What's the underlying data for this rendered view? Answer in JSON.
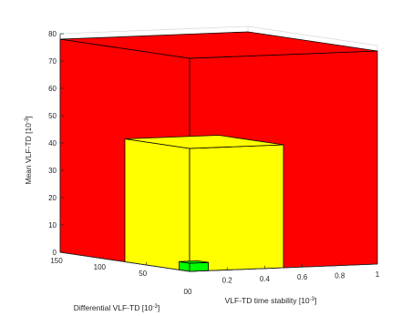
{
  "chart_data": {
    "type": "3d-bar",
    "x_axis": {
      "label": "VLF-TD time stability [10",
      "label_exponent": "-3",
      "label_close": "]",
      "range": [
        0,
        1
      ],
      "ticks": [
        "0",
        "0.2",
        "0.4",
        "0.6",
        "0.8",
        "1"
      ]
    },
    "y_axis": {
      "label": "Differential VLF-TD [10",
      "label_exponent": "-3",
      "label_close": "]",
      "range": [
        0,
        150
      ],
      "ticks": [
        "0",
        "50",
        "100",
        "150"
      ],
      "origin_label": "00"
    },
    "z_axis": {
      "label": "Mean VLF-TD [10",
      "label_exponent": "-3",
      "label_close": "]",
      "range": [
        0,
        80
      ],
      "ticks": [
        "0",
        "10",
        "20",
        "30",
        "40",
        "50",
        "60",
        "70",
        "80"
      ]
    },
    "boxes": [
      {
        "name": "red",
        "color": "#ff0000",
        "x": [
          0,
          1.0
        ],
        "y": [
          0,
          150
        ],
        "z": [
          0,
          78
        ]
      },
      {
        "name": "yellow",
        "color": "#ffff00",
        "x": [
          0,
          0.5
        ],
        "y": [
          0,
          75
        ],
        "z": [
          0,
          45
        ]
      },
      {
        "name": "green",
        "color": "#00ff00",
        "x": [
          0,
          0.1
        ],
        "y": [
          0,
          12
        ],
        "z": [
          0,
          3
        ]
      }
    ],
    "grid": false
  }
}
